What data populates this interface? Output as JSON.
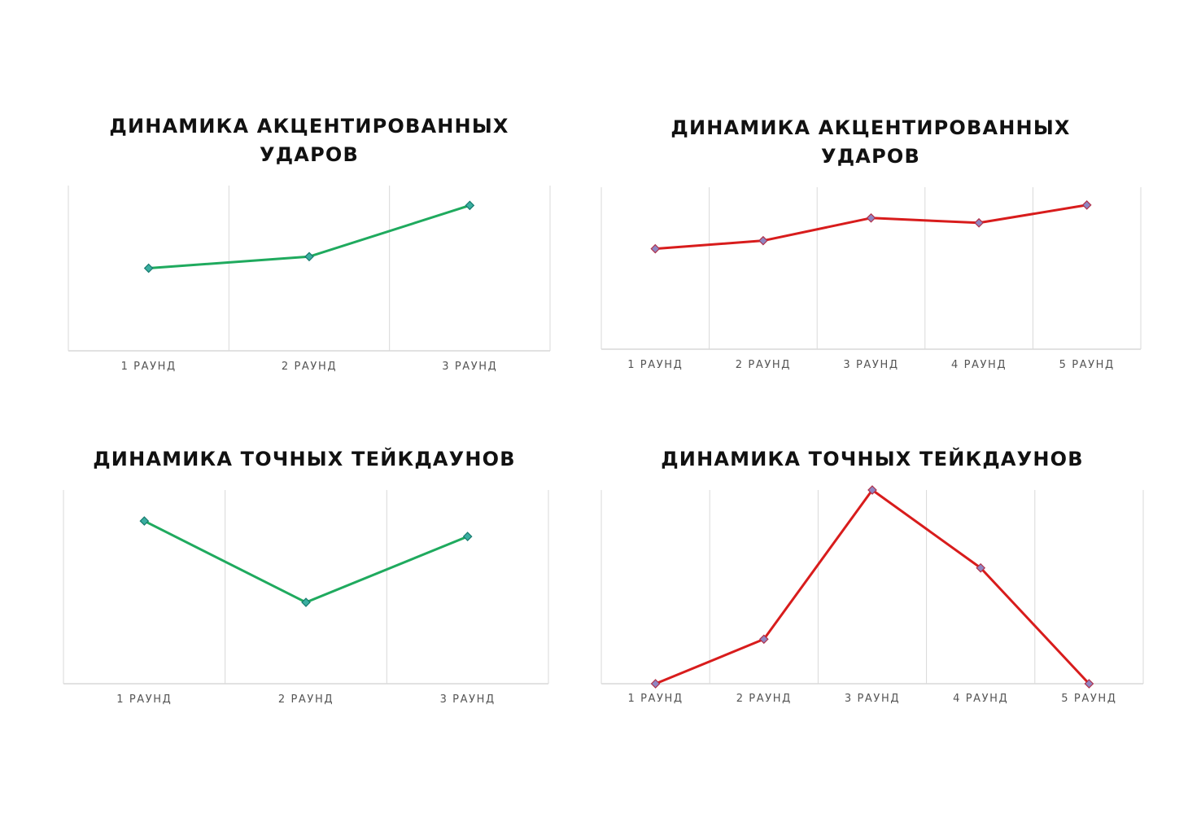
{
  "colors": {
    "green_line": "#1faa5e",
    "green_marker_fill": "#3aaea0",
    "green_marker_stroke": "#167a6e",
    "red_line": "#d81c1c",
    "red_marker_fill": "#8f86c2",
    "red_marker_stroke": "#b0304a",
    "gridline": "#d9d9d9",
    "axis_label": "#555555"
  },
  "chart_data": [
    {
      "type": "line",
      "title": "ДИНАМИКА АКЦЕНТИРОВАННЫХ\nУДАРОВ",
      "categories": [
        "1 РАУНД",
        "2 РАУНД",
        "3 РАУНД"
      ],
      "series": [
        {
          "values": [
            5.0,
            5.7,
            8.8
          ],
          "color": "green"
        }
      ],
      "ylim": [
        0,
        10
      ],
      "grid": "vertical",
      "marker": "diamond"
    },
    {
      "type": "line",
      "title": "ДИНАМИКА АКЦЕНТИРОВАННЫХ\nУДАРОВ",
      "categories": [
        "1 РАУНД",
        "2 РАУНД",
        "3 РАУНД",
        "4 РАУНД",
        "5 РАУНД"
      ],
      "series": [
        {
          "values": [
            6.2,
            6.7,
            8.1,
            7.8,
            8.9
          ],
          "color": "red"
        }
      ],
      "ylim": [
        0,
        10
      ],
      "grid": "vertical",
      "marker": "diamond"
    },
    {
      "type": "line",
      "title": "ДИНАМИКА ТОЧНЫХ ТЕЙКДАУНОВ",
      "categories": [
        "1 РАУНД",
        "2 РАУНД",
        "3 РАУНД"
      ],
      "series": [
        {
          "values": [
            8.4,
            4.2,
            7.6
          ],
          "color": "green"
        }
      ],
      "ylim": [
        0,
        10
      ],
      "grid": "vertical",
      "marker": "diamond"
    },
    {
      "type": "line",
      "title": "ДИНАМИКА ТОЧНЫХ ТЕЙКДАУНОВ",
      "categories": [
        "1 РАУНД",
        "2 РАУНД",
        "3 РАУНД",
        "4 РАУНД",
        "5 РАУНД"
      ],
      "series": [
        {
          "values": [
            0,
            2,
            8.7,
            5.2,
            0
          ],
          "color": "red"
        }
      ],
      "ylim": [
        0,
        8.7
      ],
      "grid": "vertical",
      "marker": "diamond"
    }
  ]
}
